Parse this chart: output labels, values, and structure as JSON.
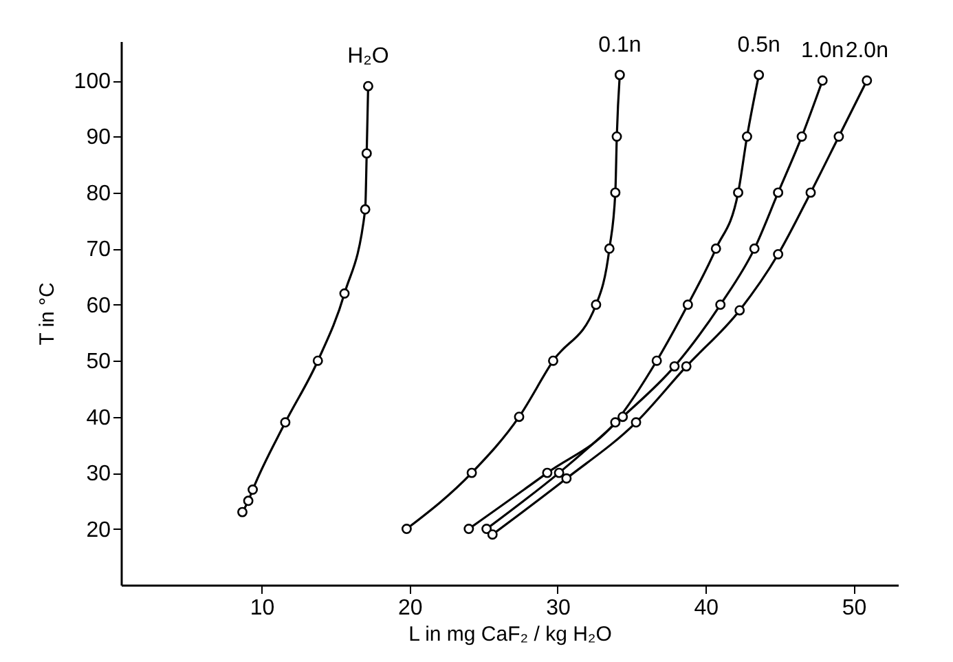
{
  "chart_data": {
    "type": "line",
    "xlabel": "L in mg CaF₂ / kg H₂O",
    "ylabel": "T in °C",
    "xlim": [
      0.5,
      53
    ],
    "ylim": [
      10,
      107
    ],
    "xticks": [
      10,
      20,
      30,
      40,
      50
    ],
    "yticks": [
      20,
      30,
      40,
      50,
      60,
      70,
      80,
      90,
      100
    ],
    "grid": false,
    "legend": false,
    "marker": "circle",
    "line_style": "solid",
    "series": [
      {
        "name": "H₂O",
        "color": "#000000",
        "x": [
          8.7,
          9.1,
          9.4,
          11.6,
          13.8,
          15.6,
          17.0,
          17.1,
          17.2
        ],
        "values": [
          23,
          25,
          27,
          39,
          50,
          62,
          77,
          87,
          99
        ]
      },
      {
        "name": "0.1n",
        "color": "#000000",
        "x": [
          19.8,
          24.2,
          27.4,
          29.7,
          32.6,
          33.5,
          33.9,
          34.0,
          34.2
        ],
        "values": [
          20,
          30,
          40,
          50,
          60,
          70,
          80,
          90,
          101
        ]
      },
      {
        "name": "0.5n",
        "color": "#000000",
        "x": [
          24.0,
          29.3,
          33.9,
          36.7,
          38.8,
          40.7,
          42.2,
          42.8,
          43.6
        ],
        "values": [
          20,
          30,
          39,
          50,
          60,
          70,
          80,
          90,
          101
        ]
      },
      {
        "name": "1.0n",
        "color": "#000000",
        "x": [
          25.2,
          30.1,
          34.4,
          37.9,
          41.0,
          43.3,
          44.9,
          46.5,
          47.9
        ],
        "values": [
          20,
          30,
          40,
          49,
          60,
          70,
          80,
          90,
          100
        ]
      },
      {
        "name": "2.0n",
        "color": "#000000",
        "x": [
          25.6,
          30.6,
          35.3,
          38.7,
          42.3,
          44.9,
          47.1,
          49.0,
          50.9
        ],
        "values": [
          19,
          29,
          39,
          49,
          59,
          69,
          80,
          90,
          100
        ]
      }
    ]
  }
}
